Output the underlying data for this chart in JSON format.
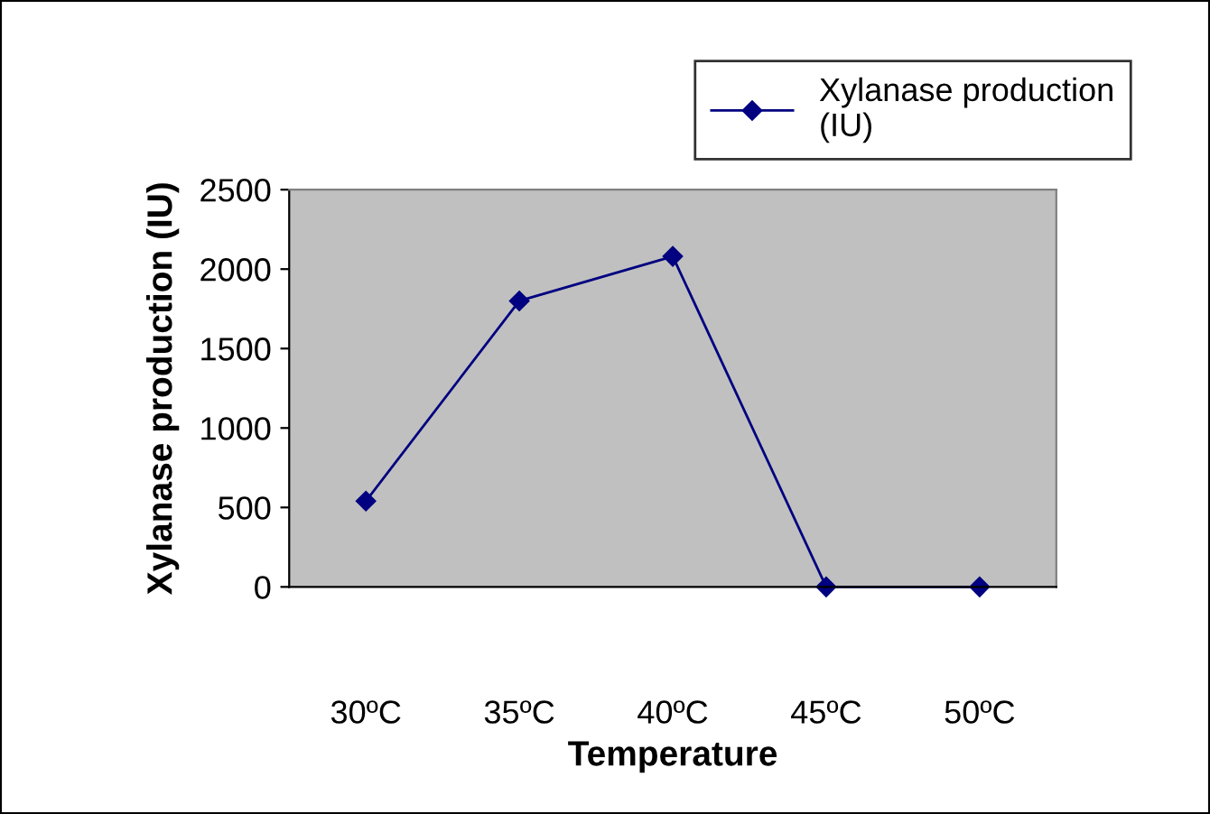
{
  "chart_data": {
    "type": "line",
    "xlabel": "Temperature",
    "ylabel": "Xylanase production (IU)",
    "categories": [
      "30ºC",
      "35ºC",
      "40ºC",
      "45ºC",
      "50ºC"
    ],
    "series": [
      {
        "name": "Xylanase production\n(IU)",
        "color": "#000080",
        "values": [
          540,
          1800,
          2080,
          0,
          0
        ]
      }
    ],
    "ylim": [
      0,
      2500
    ],
    "yticks": [
      0,
      500,
      1000,
      1500,
      2000,
      2500
    ],
    "marker": "diamond",
    "line_style": "solid",
    "legend": "top right",
    "grid": false
  }
}
